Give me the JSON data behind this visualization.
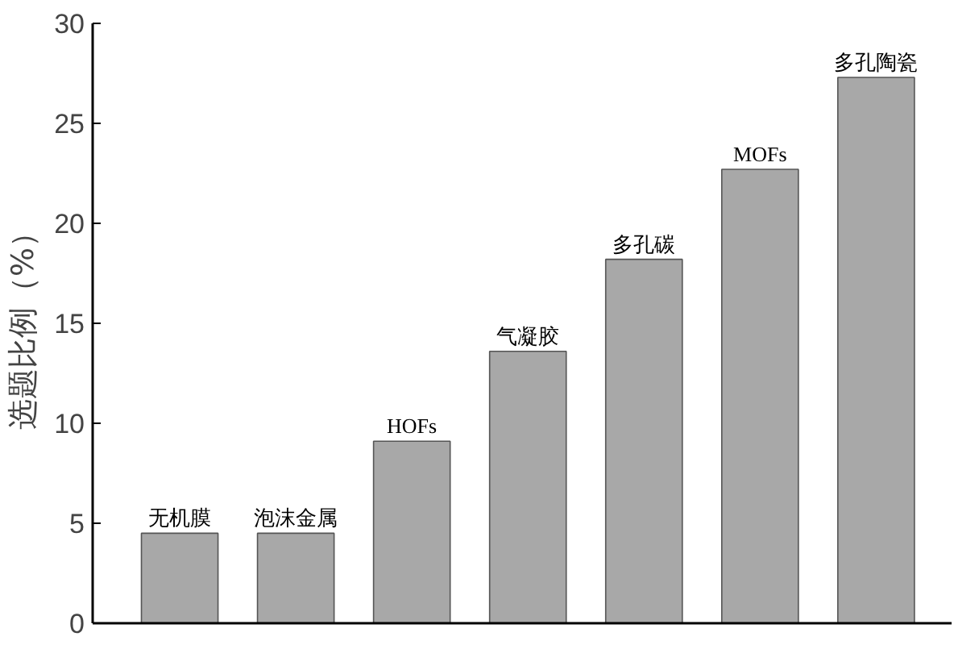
{
  "chart_data": {
    "type": "bar",
    "ylabel": "选题比例（%）",
    "categories": [
      "无机膜",
      "泡沫金属",
      "HOFs",
      "气凝胶",
      "多孔碳",
      "MOFs",
      "多孔陶瓷"
    ],
    "values": [
      4.5,
      4.5,
      9.1,
      13.6,
      18.2,
      22.7,
      27.3
    ],
    "color": "#a8a8a8",
    "ylim": [
      0,
      30
    ],
    "yticks": [
      0,
      5,
      10,
      15,
      20,
      25,
      30
    ],
    "grid": false,
    "tick_labels": "y"
  }
}
